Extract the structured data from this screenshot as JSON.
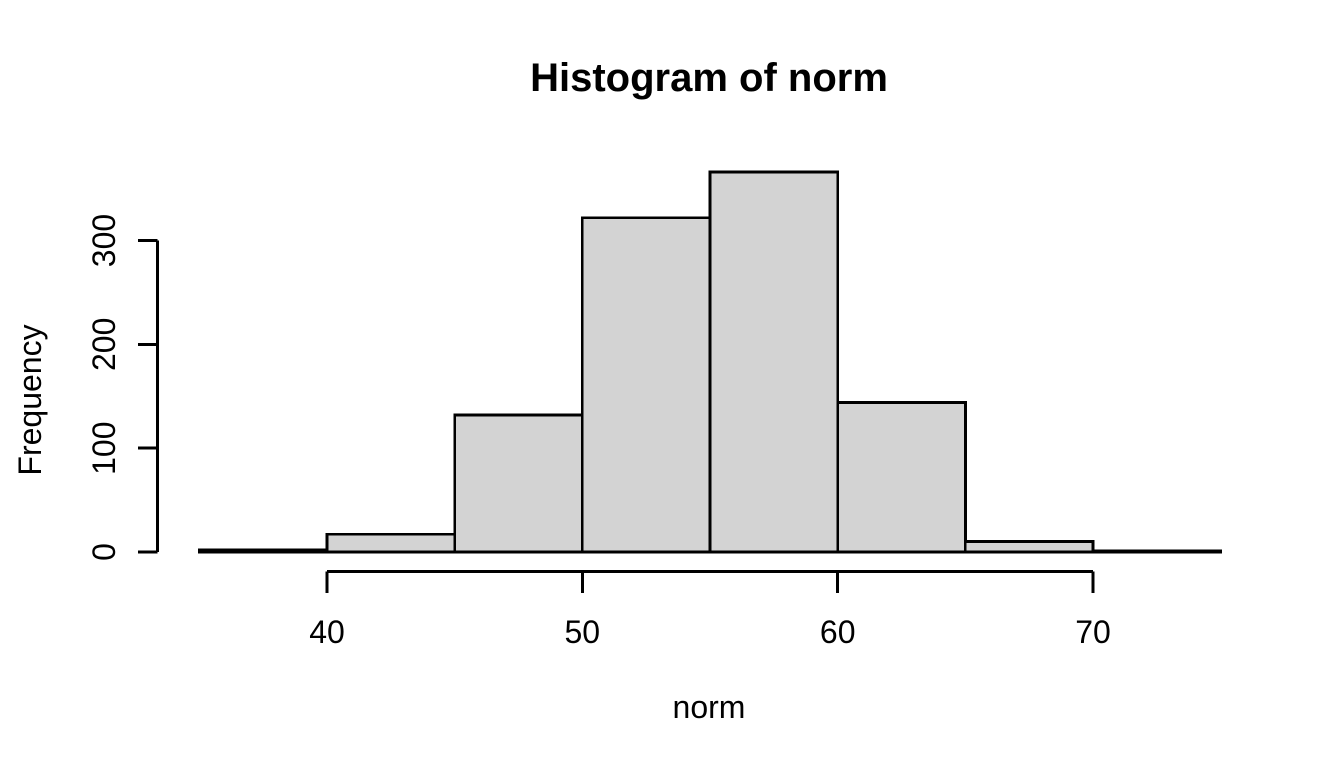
{
  "figure_title": "Histogram of norm",
  "chart_data": {
    "type": "bar",
    "subtype": "histogram",
    "title": "Histogram of norm",
    "xlabel": "norm",
    "ylabel": "Frequency",
    "bin_edges": [
      35,
      40,
      45,
      50,
      55,
      60,
      65,
      70,
      75
    ],
    "counts": [
      2,
      17,
      132,
      322,
      366,
      144,
      10,
      1
    ],
    "x_ticks": [
      40,
      50,
      60,
      70
    ],
    "y_ticks": [
      0,
      100,
      200,
      300
    ],
    "xlim": [
      33.4,
      76.6
    ],
    "ylim": [
      0,
      380
    ],
    "grid": false,
    "legend": false,
    "bar_fill": "#d3d3d3",
    "bar_stroke": "#000000",
    "axis_color": "#000000",
    "background": "#ffffff"
  }
}
